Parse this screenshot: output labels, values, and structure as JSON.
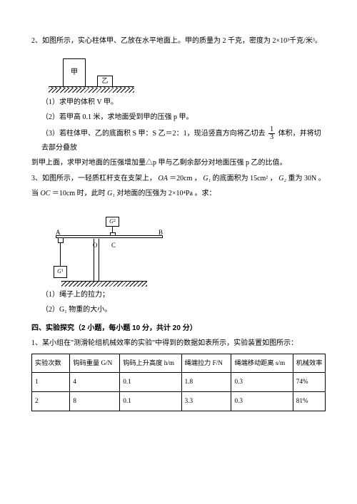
{
  "q2": {
    "stem": "2、如图所示，实心柱体甲、乙放在水平地面上。甲的质量为 2 千克，密度为 2×10³千克/米³。",
    "fig": {
      "jia": "甲",
      "yi": "乙"
    },
    "p1": "（1）求甲的体积 V 甲。",
    "p2": "（2）若甲高 0.1 米，求地面受到甲的压强 p 甲。",
    "p3a": "（3）若柱体甲、乙的底面积 S 甲：S 乙＝2：1，现沿竖直方向将乙切去",
    "frac_num": "1",
    "frac_den": "3",
    "p3b": "体积，并将切去部分叠放",
    "p3c": "到甲上面，求甲对地面的压强增加量△p 甲与乙剩余部分对地面压强 p 乙的比值。"
  },
  "q3": {
    "stem_a": "3、如图所示，一轻质杠杆支在支架上，",
    "oa": "OA ",
    "oa_eq": "＝20cm ，",
    "g1": "G₁",
    "stem_b": " 的底面积为 15cm² ，",
    "g2": "G₂",
    "stem_c": " 重为 30N 。",
    "stem_d": "当 ",
    "oc": "OC ",
    "oc_eq": "＝10cm 时，此时 ",
    "stem_e": " 对地面的压强为 2×10⁴Pa 。求：",
    "fig": {
      "A": "A",
      "O": "O",
      "C": "C",
      "B": "B",
      "G1": "G",
      "G1sub": "1",
      "G2": "G",
      "G2sub": "2"
    },
    "p1": "（1）绳子上的拉力；",
    "p2": "（2）G₁ 物重的大小。"
  },
  "section4": {
    "title": "四、实验探究（2 小题，每小题 10 分，共计 20 分）",
    "q1_stem": "1、某小组在\"测滑轮组机械效率的实验\"中得到的数据如表所示，实验装置如图所示：",
    "table": {
      "headers": [
        "实验次数",
        "钩码重量 G/N",
        "钩码上升高度 h/m",
        "绳端拉力 F/N",
        "绳端移动距离 s/m",
        "机械效率"
      ],
      "col_widths": [
        "13%",
        "17%",
        "21%",
        "17%",
        "21%",
        "11%"
      ],
      "rows": [
        [
          "1",
          "4",
          "0.1",
          "1.8",
          "0.3",
          "74%"
        ],
        [
          "2",
          "8",
          "0.1",
          "3.3",
          "0.3",
          "81%"
        ]
      ]
    }
  }
}
